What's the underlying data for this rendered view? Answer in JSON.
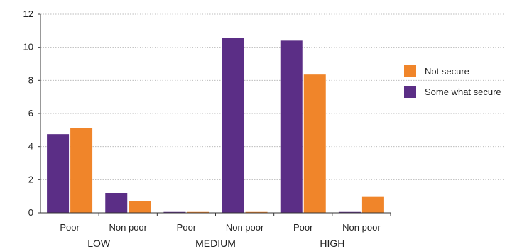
{
  "chart_data": {
    "type": "bar",
    "groups": [
      "LOW",
      "MEDIUM",
      "HIGH"
    ],
    "categories": [
      "Poor",
      "Non poor",
      "Poor",
      "Non poor",
      "Poor",
      "Non poor"
    ],
    "category_group": [
      0,
      0,
      1,
      1,
      2,
      2
    ],
    "series": [
      {
        "name": "Some what secure",
        "color": "#5b2e86",
        "values": [
          4.75,
          1.2,
          0,
          10.55,
          10.4,
          0
        ]
      },
      {
        "name": "Not secure",
        "color": "#f0852a",
        "values": [
          5.1,
          0.72,
          0,
          0,
          8.35,
          1.0
        ]
      }
    ],
    "ylim": [
      0,
      12
    ],
    "yticks": [
      0,
      2,
      4,
      6,
      8,
      10,
      12
    ],
    "grid": true,
    "legend": {
      "position": "right",
      "order": [
        "Not secure",
        "Some what secure"
      ]
    }
  }
}
